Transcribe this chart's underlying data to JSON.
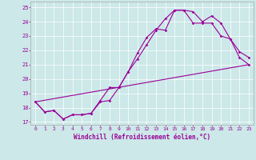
{
  "title": "",
  "xlabel": "Windchill (Refroidissement éolien,°C)",
  "bg_color": "#cce8e8",
  "line_color": "#990099",
  "grid_color": "#ffffff",
  "xlim": [
    -0.5,
    23.5
  ],
  "ylim": [
    16.8,
    25.4
  ],
  "yticks": [
    17,
    18,
    19,
    20,
    21,
    22,
    23,
    24,
    25
  ],
  "xticks": [
    0,
    1,
    2,
    3,
    4,
    5,
    6,
    7,
    8,
    9,
    10,
    11,
    12,
    13,
    14,
    15,
    16,
    17,
    18,
    19,
    20,
    21,
    22,
    23
  ],
  "line1_x": [
    0,
    1,
    2,
    3,
    4,
    5,
    6,
    7,
    8,
    9,
    10,
    11,
    12,
    13,
    14,
    15,
    16,
    17,
    18,
    19,
    20,
    21,
    22,
    23
  ],
  "line1_y": [
    18.4,
    17.7,
    17.8,
    17.2,
    17.5,
    17.5,
    17.6,
    18.4,
    18.5,
    19.4,
    20.5,
    21.8,
    22.9,
    23.5,
    23.4,
    24.8,
    24.8,
    24.7,
    24.0,
    24.4,
    23.9,
    22.8,
    21.9,
    21.5
  ],
  "line2_x": [
    0,
    1,
    2,
    3,
    4,
    5,
    6,
    7,
    8,
    9,
    10,
    11,
    12,
    13,
    14,
    15,
    16,
    17,
    18,
    19,
    20,
    21,
    22,
    23
  ],
  "line2_y": [
    18.4,
    17.7,
    17.8,
    17.2,
    17.5,
    17.5,
    17.6,
    18.5,
    19.4,
    19.4,
    20.5,
    21.4,
    22.4,
    23.4,
    24.2,
    24.8,
    24.8,
    23.9,
    23.9,
    23.9,
    23.0,
    22.8,
    21.5,
    21.0
  ],
  "line3_x": [
    0,
    23
  ],
  "line3_y": [
    18.4,
    21.0
  ]
}
